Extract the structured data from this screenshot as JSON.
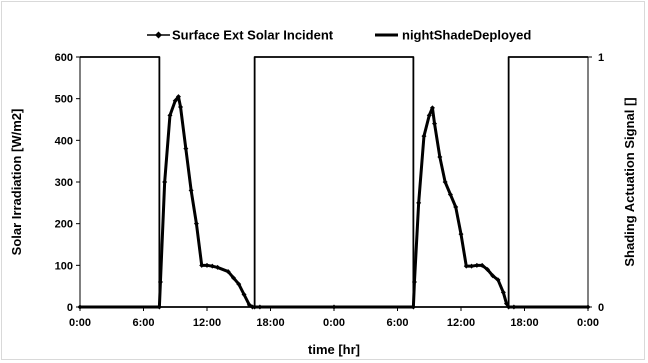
{
  "chart_data": {
    "type": "line",
    "legend_position": "top",
    "grid": false,
    "xlabel": "time [hr]",
    "ylabel": "Solar Irradiation [W/m2]",
    "y2label": "Shading Actuation Signal []",
    "xlim": [
      0,
      48
    ],
    "ylim": [
      0,
      600
    ],
    "y2lim": [
      0,
      1
    ],
    "x_tick_labels": [
      "0:00",
      "6:00",
      "12:00",
      "18:00",
      "0:00",
      "6:00",
      "12:00",
      "18:00",
      "0:00"
    ],
    "x_tick_values": [
      0,
      6,
      12,
      18,
      24,
      30,
      36,
      42,
      48
    ],
    "y_tick_labels": [
      "0",
      "100",
      "200",
      "300",
      "400",
      "500",
      "600"
    ],
    "y2_tick_labels": [
      "0",
      "1"
    ],
    "colors": {
      "series": "#000000",
      "axis": "#000000"
    },
    "series": [
      {
        "name": "Surface Ext Solar Incident",
        "axis": "left",
        "marker": "diamond",
        "x": [
          0,
          7.5,
          7.6,
          8.0,
          8.5,
          9.0,
          9.3,
          9.5,
          10.0,
          10.5,
          11.0,
          11.5,
          12.0,
          12.5,
          13.0,
          14.0,
          14.5,
          15.0,
          15.5,
          16.0,
          16.3,
          16.5,
          17.0,
          24,
          31.5,
          31.6,
          32.0,
          32.5,
          33.0,
          33.3,
          33.5,
          34.0,
          34.5,
          35.0,
          35.5,
          36.0,
          36.5,
          37.0,
          37.5,
          38.0,
          38.5,
          39.0,
          39.5,
          40.0,
          40.3,
          40.5,
          41.0,
          48
        ],
        "y": [
          0,
          0,
          60,
          300,
          460,
          495,
          505,
          480,
          380,
          280,
          200,
          100,
          100,
          98,
          95,
          85,
          70,
          55,
          30,
          5,
          0,
          0,
          0,
          0,
          0,
          60,
          250,
          410,
          460,
          478,
          440,
          360,
          300,
          270,
          240,
          175,
          98,
          98,
          100,
          100,
          90,
          75,
          65,
          35,
          8,
          0,
          0,
          0
        ]
      },
      {
        "name": "nightShadeDeployed",
        "axis": "right",
        "marker": "none",
        "x": [
          0,
          7.5,
          7.5,
          16.5,
          16.5,
          31.5,
          31.5,
          40.5,
          40.5,
          48
        ],
        "y": [
          1,
          1,
          0,
          0,
          1,
          1,
          0,
          0,
          1,
          1
        ]
      }
    ]
  }
}
